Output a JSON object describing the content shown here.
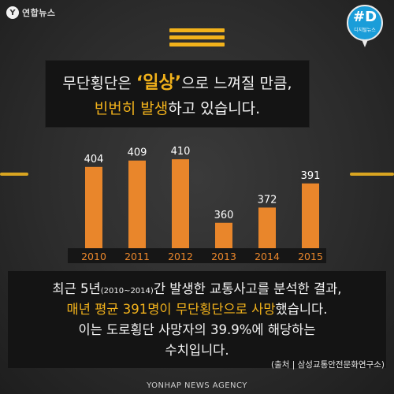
{
  "header": {
    "logo_mark": "Y",
    "logo_text": "연합뉴스",
    "badge_main": "#D",
    "badge_sub": "디지털뉴스"
  },
  "caption_top": {
    "l1_a": "무단횡단은 ",
    "l1_quote": "‘일상’",
    "l1_b": "으로 느껴질 만큼,",
    "l2_hl": "빈번히 발생",
    "l2_b": "하고 있습니다."
  },
  "chart_data": {
    "type": "bar",
    "categories": [
      "2010",
      "2011",
      "2012",
      "2013",
      "2014",
      "2015"
    ],
    "values": [
      404,
      409,
      410,
      360,
      372,
      391
    ],
    "value_labels": [
      "404",
      "409",
      "410",
      "360",
      "372",
      "391"
    ],
    "ylim": [
      340,
      420
    ],
    "bar_color": "#e9862b",
    "axis_band_color": "#161616"
  },
  "caption_bottom": {
    "l1_a": "최근 5년",
    "l1_small": "(2010~2014)",
    "l1_b": "간 발생한 교통사고를 분석한 결과,",
    "l2_hl": "매년 평균 391명이 무단횡단으로 사망",
    "l2_b": "했습니다.",
    "l3": "이는 도로횡단 사망자의 39.9%에 해당하는",
    "l4": "수치입니다."
  },
  "source": "(출처 | 삼성교통안전문화연구소)",
  "credit": "YONHAP NEWS AGENCY",
  "colors": {
    "accent": "#f2b21b",
    "bar": "#e9862b",
    "badge": "#1a9dd9"
  }
}
